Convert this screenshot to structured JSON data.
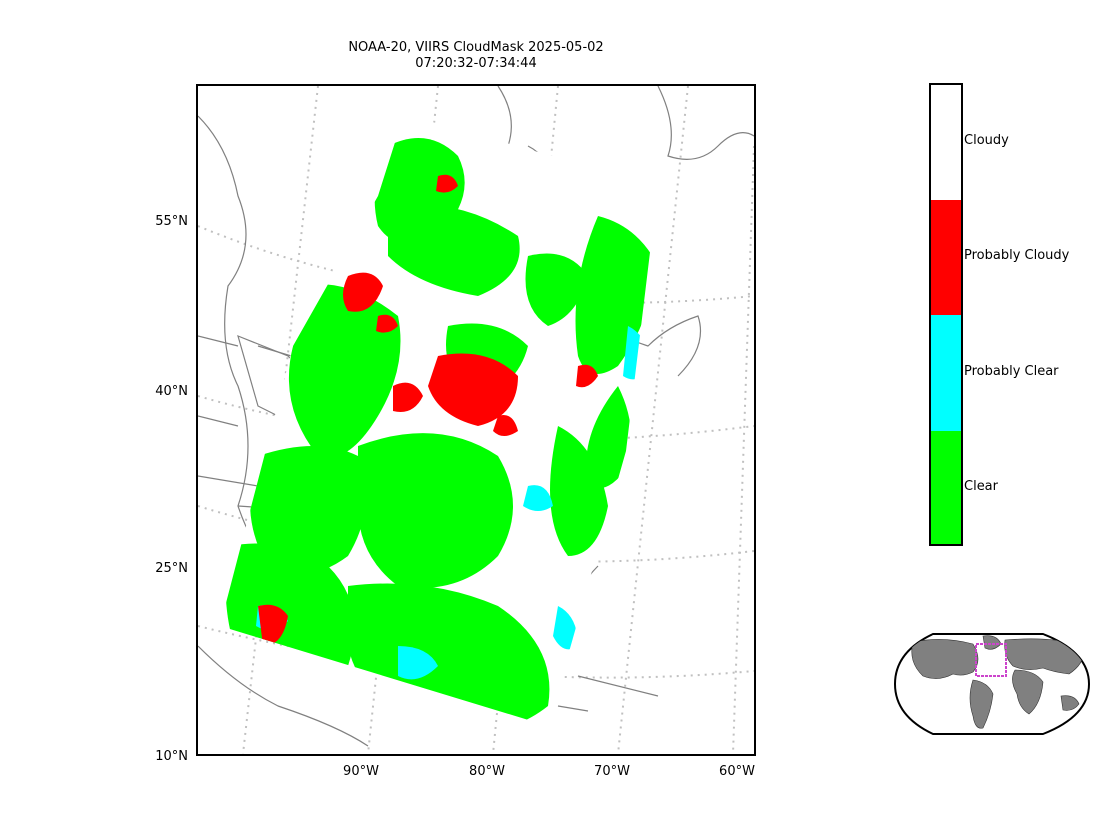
{
  "title": {
    "line1": "NOAA-20, VIIRS CloudMask 2025-05-02",
    "line2": "07:20:32-07:34:44"
  },
  "map": {
    "lat_labels": [
      "55°N",
      "40°N",
      "25°N",
      "10°N"
    ],
    "lon_labels": [
      "90°W",
      "80°W",
      "70°W",
      "60°W"
    ],
    "graticule_color": "#c0c0c0",
    "coastline_color": "#808080"
  },
  "colorbar": {
    "categories": [
      {
        "label": "Cloudy",
        "color": "#ffffff"
      },
      {
        "label": "Probably Cloudy",
        "color": "#ff0000"
      },
      {
        "label": "Probably Clear",
        "color": "#00ffff"
      },
      {
        "label": "Clear",
        "color": "#00ff00"
      }
    ]
  },
  "inset": {
    "type": "world-locator-globe",
    "land_color": "#808080",
    "box_color": "#cc44cc"
  }
}
